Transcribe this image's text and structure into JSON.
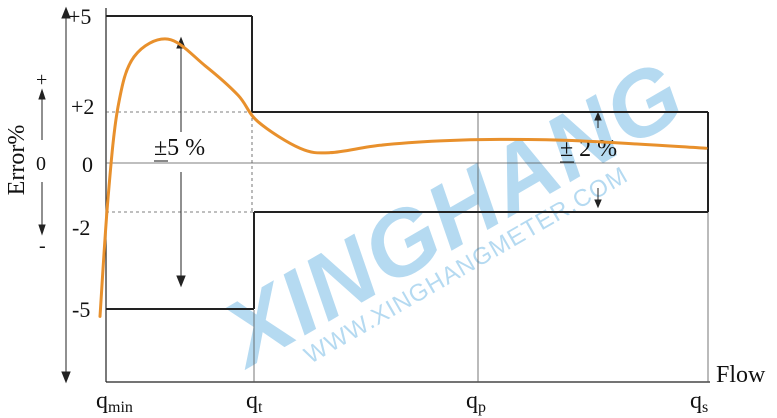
{
  "chart_data": {
    "type": "line",
    "title": "",
    "xlabel": "Flow",
    "ylabel": "Error%",
    "y_sign_labels": {
      "plus": "+",
      "zero": "0",
      "minus": "-"
    },
    "x_ticks": [
      {
        "main": "q",
        "sub": "min"
      },
      {
        "main": "q",
        "sub": "t"
      },
      {
        "main": "q",
        "sub": "p"
      },
      {
        "main": "q",
        "sub": "s"
      }
    ],
    "y_ticks": [
      {
        "value": 5,
        "label": "+5"
      },
      {
        "value": 2,
        "label": "+2"
      },
      {
        "value": 0,
        "label": "0"
      },
      {
        "value": -2,
        "label": "-2"
      },
      {
        "value": -5,
        "label": "-5"
      }
    ],
    "ylim": [
      -7.25,
      5
    ],
    "zones": [
      {
        "from": "qmin",
        "to": "qt",
        "limit": 5,
        "label": "±5 %"
      },
      {
        "from": "qt",
        "to": "qs",
        "limit": 2,
        "label": "± 2 %"
      }
    ],
    "curve_color": "#e8902c",
    "curve": {
      "x": [
        "qmin",
        "",
        "",
        "",
        "",
        "",
        "",
        "qt",
        "",
        "",
        "",
        "",
        "qp",
        "",
        "qs"
      ],
      "y": [
        -5.2,
        -1.2,
        1.9,
        3.6,
        4.2,
        3.3,
        2.3,
        1.4,
        0.5,
        0.35,
        0.6,
        0.75,
        0.8,
        0.75,
        0.5
      ]
    },
    "watermark": {
      "line1": "XINGHANG",
      "line2": "WWW.XINGHANGMETER.COM",
      "color": "#a9d4ef"
    },
    "grid": false,
    "legend": "none"
  }
}
